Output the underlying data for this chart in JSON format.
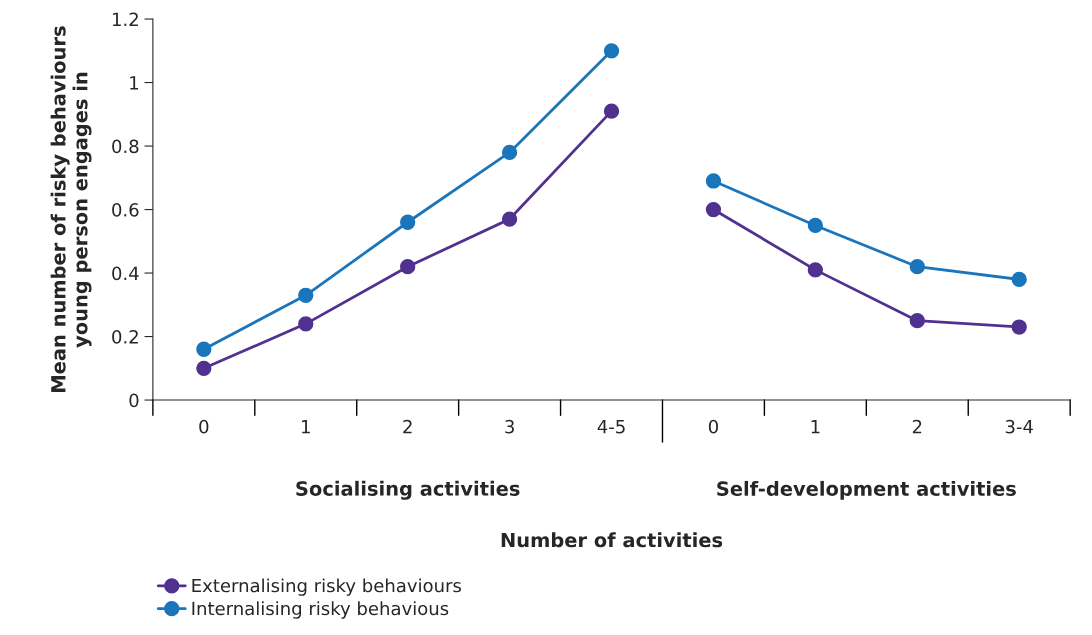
{
  "chart_data": {
    "type": "line",
    "categories": [
      "0",
      "1",
      "2",
      "3",
      "4-5",
      "0",
      "1",
      "2",
      "3-4"
    ],
    "series": [
      {
        "name": "Externalising risky behaviours",
        "color": "#51318f",
        "values": [
          0.1,
          0.24,
          0.42,
          0.57,
          0.91,
          null,
          null,
          null,
          null
        ]
      },
      {
        "name": "Internalising risky behavious",
        "color": "#1a75bb",
        "values": [
          0.16,
          0.33,
          0.56,
          0.78,
          1.1,
          null,
          null,
          null,
          null
        ]
      },
      {
        "color": "#51318f",
        "values": [
          null,
          null,
          null,
          null,
          null,
          0.6,
          0.41,
          0.25,
          0.23
        ]
      },
      {
        "color": "#1a75bb",
        "values": [
          null,
          null,
          null,
          null,
          null,
          0.69,
          0.55,
          0.42,
          0.38
        ]
      }
    ],
    "ylabel": "Mean number of risky behaviours\nyoung person engages in",
    "annotations": [
      "Socialising activities",
      "Self-development activities",
      "Number of activities"
    ],
    "ylim": [
      0,
      1.2
    ],
    "yticks": [
      0,
      0.2,
      0.4,
      0.6,
      0.8,
      1,
      1.2
    ],
    "marker": "circle",
    "grid": false,
    "legend": "bottom left"
  }
}
